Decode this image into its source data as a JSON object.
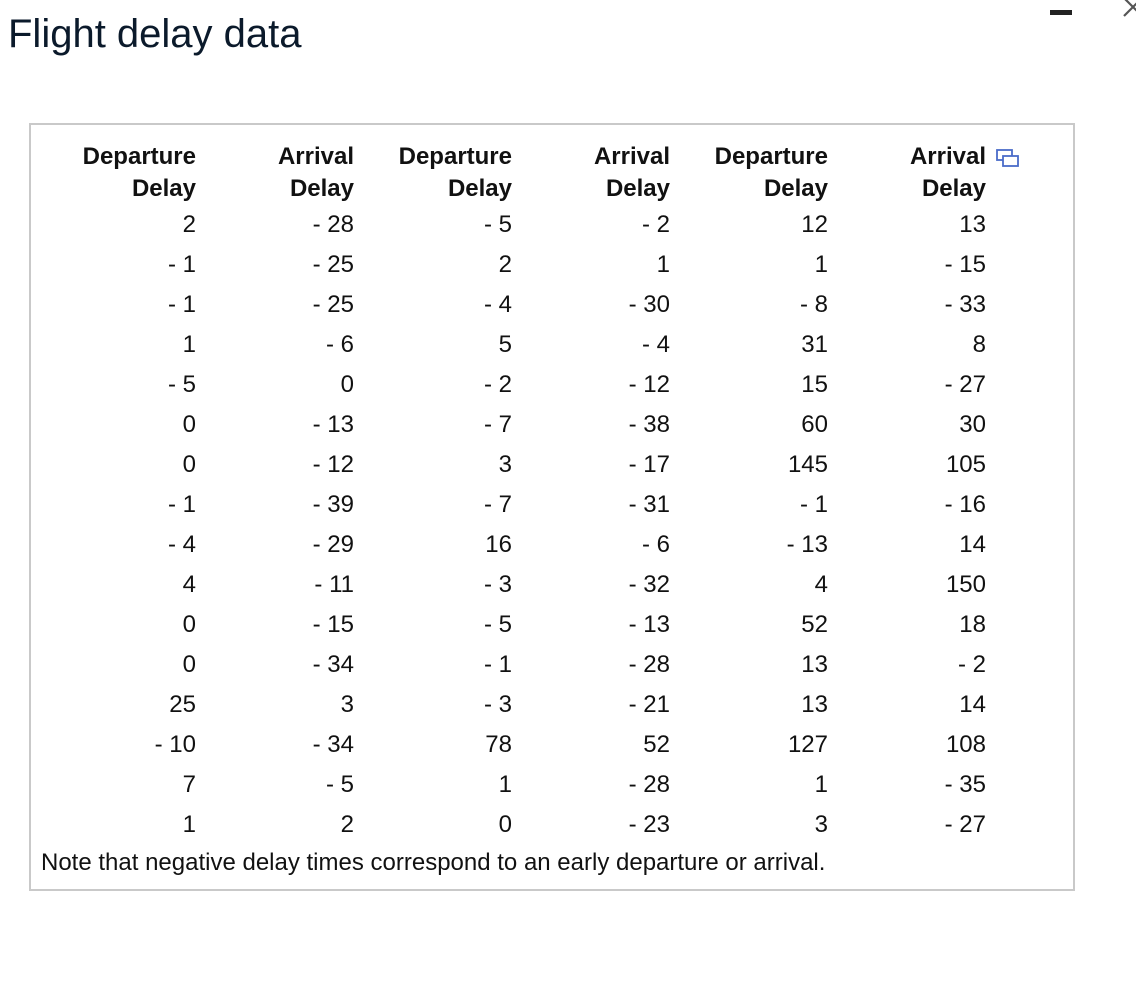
{
  "window": {
    "title": "Flight delay data"
  },
  "icons": {
    "minimize": "minimize-icon",
    "close": "close-icon",
    "copy": "copy-icon"
  },
  "colors": {
    "title": "#0b1a2b",
    "panel_border": "#c9c9c9",
    "copy_icon": "#4a6cc9"
  },
  "table": {
    "headers": [
      "Departure\nDelay",
      "Arrival\nDelay",
      "Departure\nDelay",
      "Arrival\nDelay",
      "Departure\nDelay",
      "Arrival\nDelay"
    ],
    "rows": [
      [
        "2",
        "- 28",
        "- 5",
        "- 2",
        "12",
        "13"
      ],
      [
        "- 1",
        "- 25",
        "2",
        "1",
        "1",
        "- 15"
      ],
      [
        "- 1",
        "- 25",
        "- 4",
        "- 30",
        "- 8",
        "- 33"
      ],
      [
        "1",
        "- 6",
        "5",
        "- 4",
        "31",
        "8"
      ],
      [
        "- 5",
        "0",
        "- 2",
        "- 12",
        "15",
        "- 27"
      ],
      [
        "0",
        "- 13",
        "- 7",
        "- 38",
        "60",
        "30"
      ],
      [
        "0",
        "- 12",
        "3",
        "- 17",
        "145",
        "105"
      ],
      [
        "- 1",
        "- 39",
        "- 7",
        "- 31",
        "- 1",
        "- 16"
      ],
      [
        "- 4",
        "- 29",
        "16",
        "- 6",
        "- 13",
        "14"
      ],
      [
        "4",
        "- 11",
        "- 3",
        "- 32",
        "4",
        "150"
      ],
      [
        "0",
        "- 15",
        "- 5",
        "- 13",
        "52",
        "18"
      ],
      [
        "0",
        "- 34",
        "- 1",
        "- 28",
        "13",
        "- 2"
      ],
      [
        "25",
        "3",
        "- 3",
        "- 21",
        "13",
        "14"
      ],
      [
        "- 10",
        "- 34",
        "78",
        "52",
        "127",
        "108"
      ],
      [
        "7",
        "- 5",
        "1",
        "- 28",
        "1",
        "- 35"
      ],
      [
        "1",
        "2",
        "0",
        "- 23",
        "3",
        "- 27"
      ]
    ]
  },
  "note": "Note that negative delay times correspond to an early departure or arrival."
}
